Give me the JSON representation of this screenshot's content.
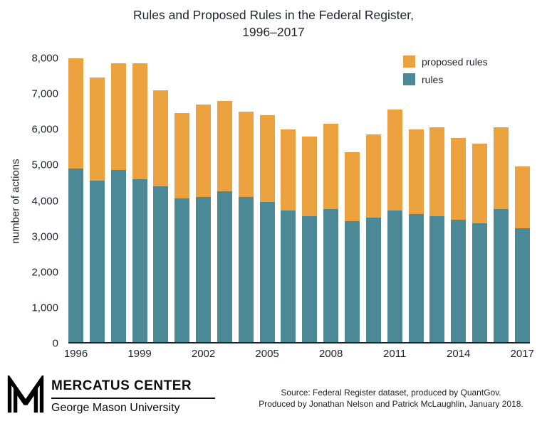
{
  "title": {
    "line1": "Rules and Proposed Rules in the Federal Register,",
    "line2": "1996–2017"
  },
  "chart_data": {
    "type": "bar",
    "stacked": true,
    "title": "Rules and Proposed Rules in the Federal Register, 1996–2017",
    "xlabel": "",
    "ylabel": "number of actions",
    "ylim": [
      0,
      8000
    ],
    "y_ticks": [
      0,
      1000,
      2000,
      3000,
      4000,
      5000,
      6000,
      7000,
      8000
    ],
    "categories": [
      1996,
      1997,
      1998,
      1999,
      2000,
      2001,
      2002,
      2003,
      2004,
      2005,
      2006,
      2007,
      2008,
      2009,
      2010,
      2011,
      2012,
      2013,
      2014,
      2015,
      2016,
      2017
    ],
    "x_tick_labels": [
      "1996",
      "1999",
      "2002",
      "2005",
      "2008",
      "2011",
      "2014",
      "2017"
    ],
    "series": [
      {
        "name": "rules",
        "color": "#4C8997",
        "values": [
          4900,
          4550,
          4850,
          4600,
          4400,
          4050,
          4100,
          4250,
          4100,
          3950,
          3700,
          3550,
          3750,
          3400,
          3500,
          3700,
          3600,
          3550,
          3450,
          3350,
          3750,
          3200
        ]
      },
      {
        "name": "proposed rules",
        "color": "#EBA23F",
        "values": [
          3100,
          2900,
          3000,
          3250,
          2700,
          2400,
          2600,
          2550,
          2400,
          2450,
          2300,
          2250,
          2400,
          1950,
          2350,
          2850,
          2400,
          2500,
          2300,
          2250,
          2300,
          1750
        ]
      }
    ],
    "legend_position": "top-right",
    "grid": false
  },
  "footer": {
    "org_name": "MERCATUS CENTER",
    "org_sub": "George Mason University",
    "source_line1": "Source: Federal Register dataset, produced by QuantGov.",
    "source_line2": "Produced by Jonathan Nelson and Patrick McLaughlin, January 2018."
  },
  "colors": {
    "rules": "#4C8997",
    "proposed": "#EBA23F",
    "text": "#1e252e"
  }
}
